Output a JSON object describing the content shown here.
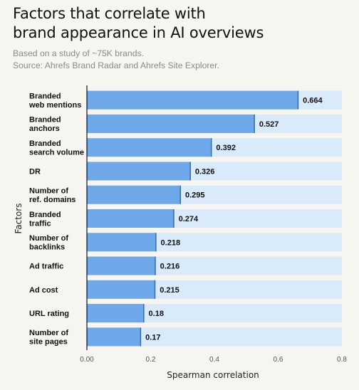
{
  "header": {
    "title_line1": "Factors that correlate with",
    "title_line2": "brand appearance in AI overviews",
    "subtitle_line1": "Based on a study of ~75K brands.",
    "subtitle_line2": "Source: Ahrefs Brand Radar and Ahrefs Site Explorer."
  },
  "colors": {
    "bar": "#6fa8e8",
    "bar_edge": "#2f6fc0",
    "track": "#d9eafb",
    "axis": "#111111"
  },
  "chart_data": {
    "type": "bar",
    "orientation": "horizontal",
    "title": "Factors that correlate with brand appearance in AI overviews",
    "xlabel": "Spearman correlation",
    "ylabel": "Factors",
    "xlim": [
      0,
      0.8
    ],
    "xticks": [
      "0.00",
      "0.2",
      "0.4",
      "0.6",
      "0.8"
    ],
    "grid": false,
    "categories": [
      [
        "Branded",
        "web mentions"
      ],
      [
        "Branded",
        "anchors"
      ],
      [
        "Branded",
        "search volume"
      ],
      [
        "DR"
      ],
      [
        "Number of",
        "ref. domains"
      ],
      [
        "Branded",
        "traffic"
      ],
      [
        "Number of",
        "backlinks"
      ],
      [
        "Ad traffic"
      ],
      [
        "Ad cost"
      ],
      [
        "URL rating"
      ],
      [
        "Number of",
        "site pages"
      ]
    ],
    "values": [
      0.664,
      0.527,
      0.392,
      0.326,
      0.295,
      0.274,
      0.218,
      0.216,
      0.215,
      0.18,
      0.17
    ],
    "value_labels": [
      "0.664",
      "0.527",
      "0.392",
      "0.326",
      "0.295",
      "0.274",
      "0.218",
      "0.216",
      "0.215",
      "0.18",
      "0.17"
    ]
  }
}
